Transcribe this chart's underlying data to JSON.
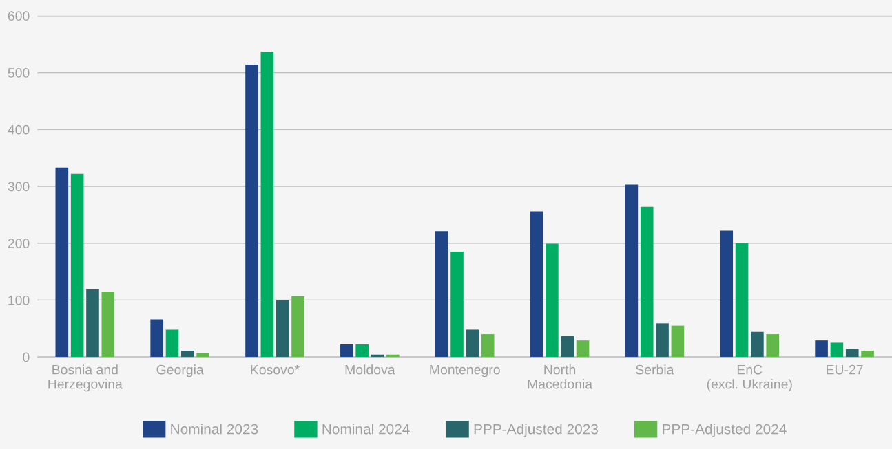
{
  "chart_data": {
    "type": "bar",
    "categories": [
      "Bosnia and\nHerzegovina",
      "Georgia",
      "Kosovo*",
      "Moldova",
      "Montenegro",
      "North\nMacedonia",
      "Serbia",
      "EnC\n(excl. Ukraine)",
      "EU-27"
    ],
    "series": [
      {
        "name": "Nominal 2023",
        "color": "#1f4488",
        "values": [
          333,
          66,
          514,
          22,
          221,
          256,
          303,
          222,
          29
        ]
      },
      {
        "name": "Nominal 2024",
        "color": "#00ae63",
        "values": [
          322,
          48,
          537,
          22,
          185,
          199,
          264,
          200,
          25
        ]
      },
      {
        "name": "PPP-Adjusted 2023",
        "color": "#28666c",
        "values": [
          119,
          11,
          100,
          4,
          48,
          37,
          59,
          44,
          14
        ]
      },
      {
        "name": "PPP-Adjusted 2024",
        "color": "#62b94a",
        "values": [
          115,
          7,
          107,
          4,
          40,
          29,
          55,
          40,
          11
        ]
      }
    ],
    "ylim": [
      0,
      600
    ],
    "yticks": [
      0,
      100,
      200,
      300,
      400,
      500,
      600
    ],
    "grid": "y",
    "legend": "bottom"
  }
}
